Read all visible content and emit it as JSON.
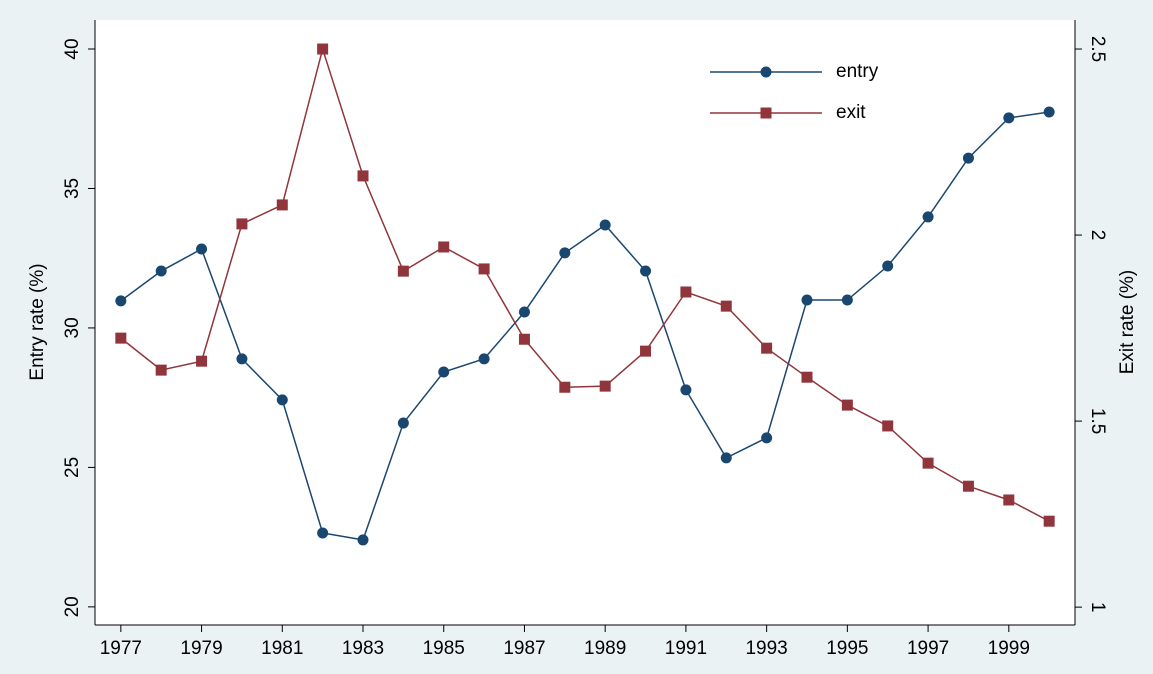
{
  "chart_data": {
    "type": "line",
    "x": [
      1977,
      1978,
      1979,
      1980,
      1981,
      1982,
      1983,
      1984,
      1985,
      1986,
      1987,
      1988,
      1989,
      1990,
      1991,
      1992,
      1993,
      1994,
      1995,
      1996,
      1997,
      1998,
      1999,
      2000
    ],
    "series": [
      {
        "name": "entry",
        "color": "#1a476f",
        "marker": "circle",
        "values": [
          30.97,
          32.04,
          32.83,
          28.89,
          27.42,
          22.65,
          22.4,
          26.59,
          28.42,
          28.89,
          30.57,
          32.69,
          33.69,
          32.04,
          27.78,
          25.34,
          26.06,
          31.0,
          31.0,
          32.22,
          33.98,
          36.09,
          37.53,
          37.74
        ]
      },
      {
        "name": "exit",
        "color": "#90353b",
        "marker": "square",
        "axis": "y2",
        "values": [
          1.723,
          1.637,
          1.661,
          2.03,
          2.081,
          2.5,
          2.159,
          1.903,
          1.968,
          1.909,
          1.72,
          1.591,
          1.594,
          1.688,
          1.847,
          1.809,
          1.696,
          1.618,
          1.543,
          1.487,
          1.387,
          1.325,
          1.288,
          1.231
        ]
      }
    ],
    "y_label": "Entry rate (%)",
    "y2_label": "Exit rate (%)",
    "xlim": [
      1976.36,
      2000.64
    ],
    "xticks": [
      1977,
      1979,
      1981,
      1983,
      1985,
      1987,
      1989,
      1991,
      1993,
      1995,
      1997,
      1999
    ],
    "ylim": [
      19.35,
      41.04
    ],
    "yticks": [
      20,
      25,
      30,
      35,
      40
    ],
    "y2lim": [
      0.952,
      2.578
    ],
    "y2ticks": [
      1,
      1.5,
      2,
      2.5
    ],
    "legend": "top"
  }
}
